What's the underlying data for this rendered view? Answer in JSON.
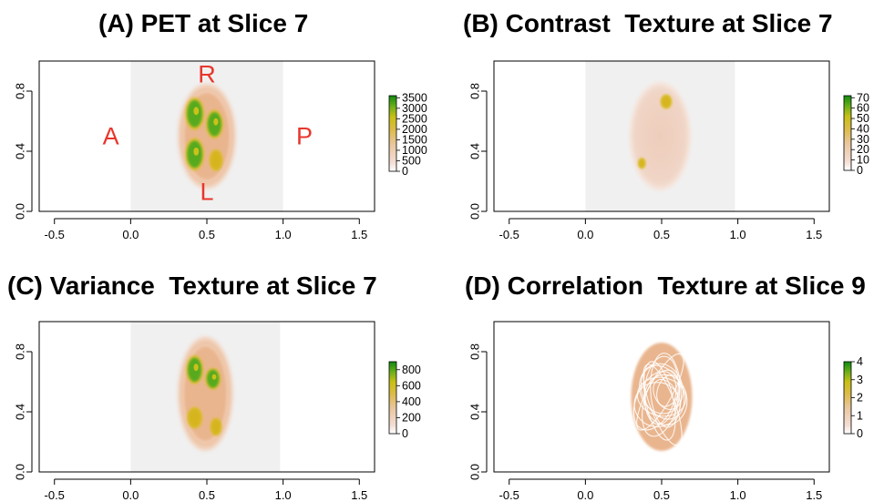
{
  "chart_data": [
    {
      "panel": "A",
      "type": "heatmap",
      "title": "(A) PET at Slice 7",
      "xlim": [
        -0.6,
        1.6
      ],
      "ylim": [
        0.0,
        1.0
      ],
      "x_ticks": [
        "-0.5",
        "0.0",
        "0.5",
        "1.0",
        "1.5"
      ],
      "y_ticks": [
        "0.0",
        "0.4",
        "0.8"
      ],
      "colorbar_ticks": [
        "0",
        "500",
        "1000",
        "1500",
        "2000",
        "2500",
        "3000",
        "3500"
      ],
      "colorbar_range": [
        0,
        3600
      ],
      "image_extent": {
        "x": [
          0.0,
          1.0
        ],
        "y": [
          0.0,
          1.0
        ]
      },
      "background": "#f0f0f0",
      "object": {
        "center": [
          0.5,
          0.5
        ],
        "rx": 0.19,
        "ry": 0.35
      },
      "annotations": [
        {
          "text": "R",
          "x": 0.5,
          "y": 0.9
        },
        {
          "text": "L",
          "x": 0.5,
          "y": 0.12
        },
        {
          "text": "A",
          "x": -0.13,
          "y": 0.49
        },
        {
          "text": "P",
          "x": 1.14,
          "y": 0.49
        }
      ],
      "annotation_color": "#e8362c",
      "hotspots": [
        {
          "x": 0.42,
          "y": 0.65,
          "rx": 0.05,
          "ry": 0.09,
          "level": "high"
        },
        {
          "x": 0.55,
          "y": 0.58,
          "rx": 0.045,
          "ry": 0.08,
          "level": "high"
        },
        {
          "x": 0.42,
          "y": 0.38,
          "rx": 0.05,
          "ry": 0.09,
          "level": "high"
        },
        {
          "x": 0.56,
          "y": 0.34,
          "rx": 0.035,
          "ry": 0.06,
          "level": "mid"
        }
      ]
    },
    {
      "panel": "B",
      "type": "heatmap",
      "title": "(B) Contrast  Texture at Slice 7",
      "xlim": [
        -0.6,
        1.6
      ],
      "ylim": [
        0.0,
        1.0
      ],
      "x_ticks": [
        "-0.5",
        "0.0",
        "0.5",
        "1.0",
        "1.5"
      ],
      "y_ticks": [
        "0.0",
        "0.4",
        "0.8"
      ],
      "colorbar_ticks": [
        "0",
        "10",
        "20",
        "30",
        "40",
        "50",
        "60",
        "70"
      ],
      "colorbar_range": [
        0,
        72
      ],
      "image_extent": {
        "x": [
          0.0,
          0.98
        ],
        "y": [
          0.0,
          1.0
        ]
      },
      "background": "#f0f0f0",
      "object": {
        "center": [
          0.49,
          0.5
        ],
        "rx": 0.2,
        "ry": 0.36
      },
      "hotspots": [
        {
          "x": 0.53,
          "y": 0.73,
          "rx": 0.03,
          "ry": 0.04,
          "level": "mid"
        },
        {
          "x": 0.37,
          "y": 0.32,
          "rx": 0.02,
          "ry": 0.03,
          "level": "mid"
        }
      ]
    },
    {
      "panel": "C",
      "type": "heatmap",
      "title": "(C) Variance  Texture at Slice 7",
      "xlim": [
        -0.6,
        1.6
      ],
      "ylim": [
        0.0,
        1.0
      ],
      "x_ticks": [
        "-0.5",
        "0.0",
        "0.5",
        "1.0",
        "1.5"
      ],
      "y_ticks": [
        "0.0",
        "0.4",
        "0.8"
      ],
      "colorbar_ticks": [
        "0",
        "200",
        "400",
        "600",
        "800"
      ],
      "colorbar_range": [
        0,
        900
      ],
      "image_extent": {
        "x": [
          0.0,
          0.98
        ],
        "y": [
          0.0,
          1.0
        ]
      },
      "background": "#f0f0f0",
      "object": {
        "center": [
          0.49,
          0.52
        ],
        "rx": 0.18,
        "ry": 0.38
      },
      "hotspots": [
        {
          "x": 0.42,
          "y": 0.68,
          "rx": 0.045,
          "ry": 0.08,
          "level": "high"
        },
        {
          "x": 0.54,
          "y": 0.62,
          "rx": 0.04,
          "ry": 0.06,
          "level": "high"
        },
        {
          "x": 0.42,
          "y": 0.36,
          "rx": 0.04,
          "ry": 0.06,
          "level": "mid"
        },
        {
          "x": 0.56,
          "y": 0.3,
          "rx": 0.03,
          "ry": 0.05,
          "level": "mid"
        }
      ]
    },
    {
      "panel": "D",
      "type": "heatmap",
      "title": "(D) Correlation  Texture at Slice 9",
      "xlim": [
        -0.6,
        1.6
      ],
      "ylim": [
        0.0,
        1.0
      ],
      "x_ticks": [
        "-0.5",
        "0.0",
        "0.5",
        "1.0",
        "1.5"
      ],
      "y_ticks": [
        "0.0",
        "0.4",
        "0.8"
      ],
      "colorbar_ticks": [
        "0",
        "1",
        "2",
        "3",
        "4"
      ],
      "colorbar_range": [
        0,
        4
      ],
      "background": "#ffffff",
      "object": {
        "center": [
          0.5,
          0.5
        ],
        "rx": 0.2,
        "ry": 0.36
      },
      "hotspots": []
    }
  ],
  "colors": {
    "object_fill": "#e9b58e",
    "object_edge": "#f3d8c6",
    "low": "#f6e3dc",
    "mid": "#d6b41a",
    "high": "#49a81e",
    "colorbar_top": "#0e8a0e"
  }
}
